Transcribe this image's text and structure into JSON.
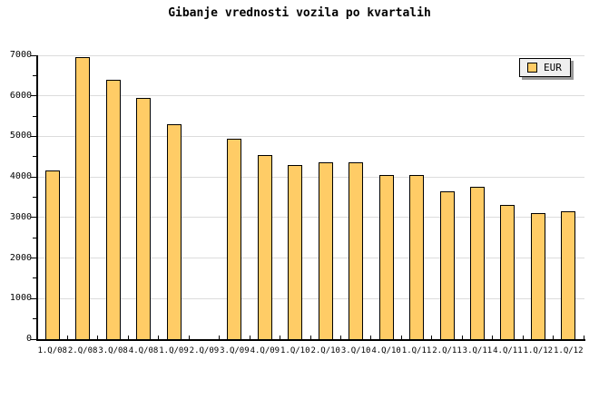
{
  "title": "Gibanje vrednosti vozila po kvartalih",
  "legend": {
    "label": "EUR"
  },
  "colors": {
    "background": "#ffffff",
    "bar_fill": "#ffcc66",
    "bar_border": "#000000",
    "grid": "#dcdcdc",
    "axis": "#000000",
    "legend_bg": "#efefef",
    "legend_shadow": "#999999"
  },
  "chart_data": {
    "type": "bar",
    "title": "Gibanje vrednosti vozila po kvartalih",
    "categories": [
      "1.Q/08",
      "2.Q/08",
      "3.Q/08",
      "4.Q/08",
      "1.Q/09",
      "2.Q/09",
      "3.Q/09",
      "4.Q/09",
      "1.Q/10",
      "2.Q/10",
      "3.Q/10",
      "4.Q/10",
      "1.Q/11",
      "2.Q/11",
      "3.Q/11",
      "4.Q/11",
      "1.Q/12",
      "1.Q/12"
    ],
    "series": [
      {
        "name": "EUR",
        "values": [
          4150,
          6950,
          6400,
          5950,
          5300,
          null,
          4950,
          4550,
          4300,
          4350,
          4350,
          4050,
          4050,
          3650,
          3750,
          3300,
          3100,
          3150
        ]
      }
    ],
    "xlabel": "",
    "ylabel": "",
    "ylim": [
      0,
      7000
    ],
    "ytick_step": 1000,
    "ytick_minor_step": 500,
    "yticks": [
      "0",
      "1000",
      "2000",
      "3000",
      "4000",
      "5000",
      "6000",
      "7000"
    ],
    "grid": true,
    "legend_position": "top-right"
  }
}
